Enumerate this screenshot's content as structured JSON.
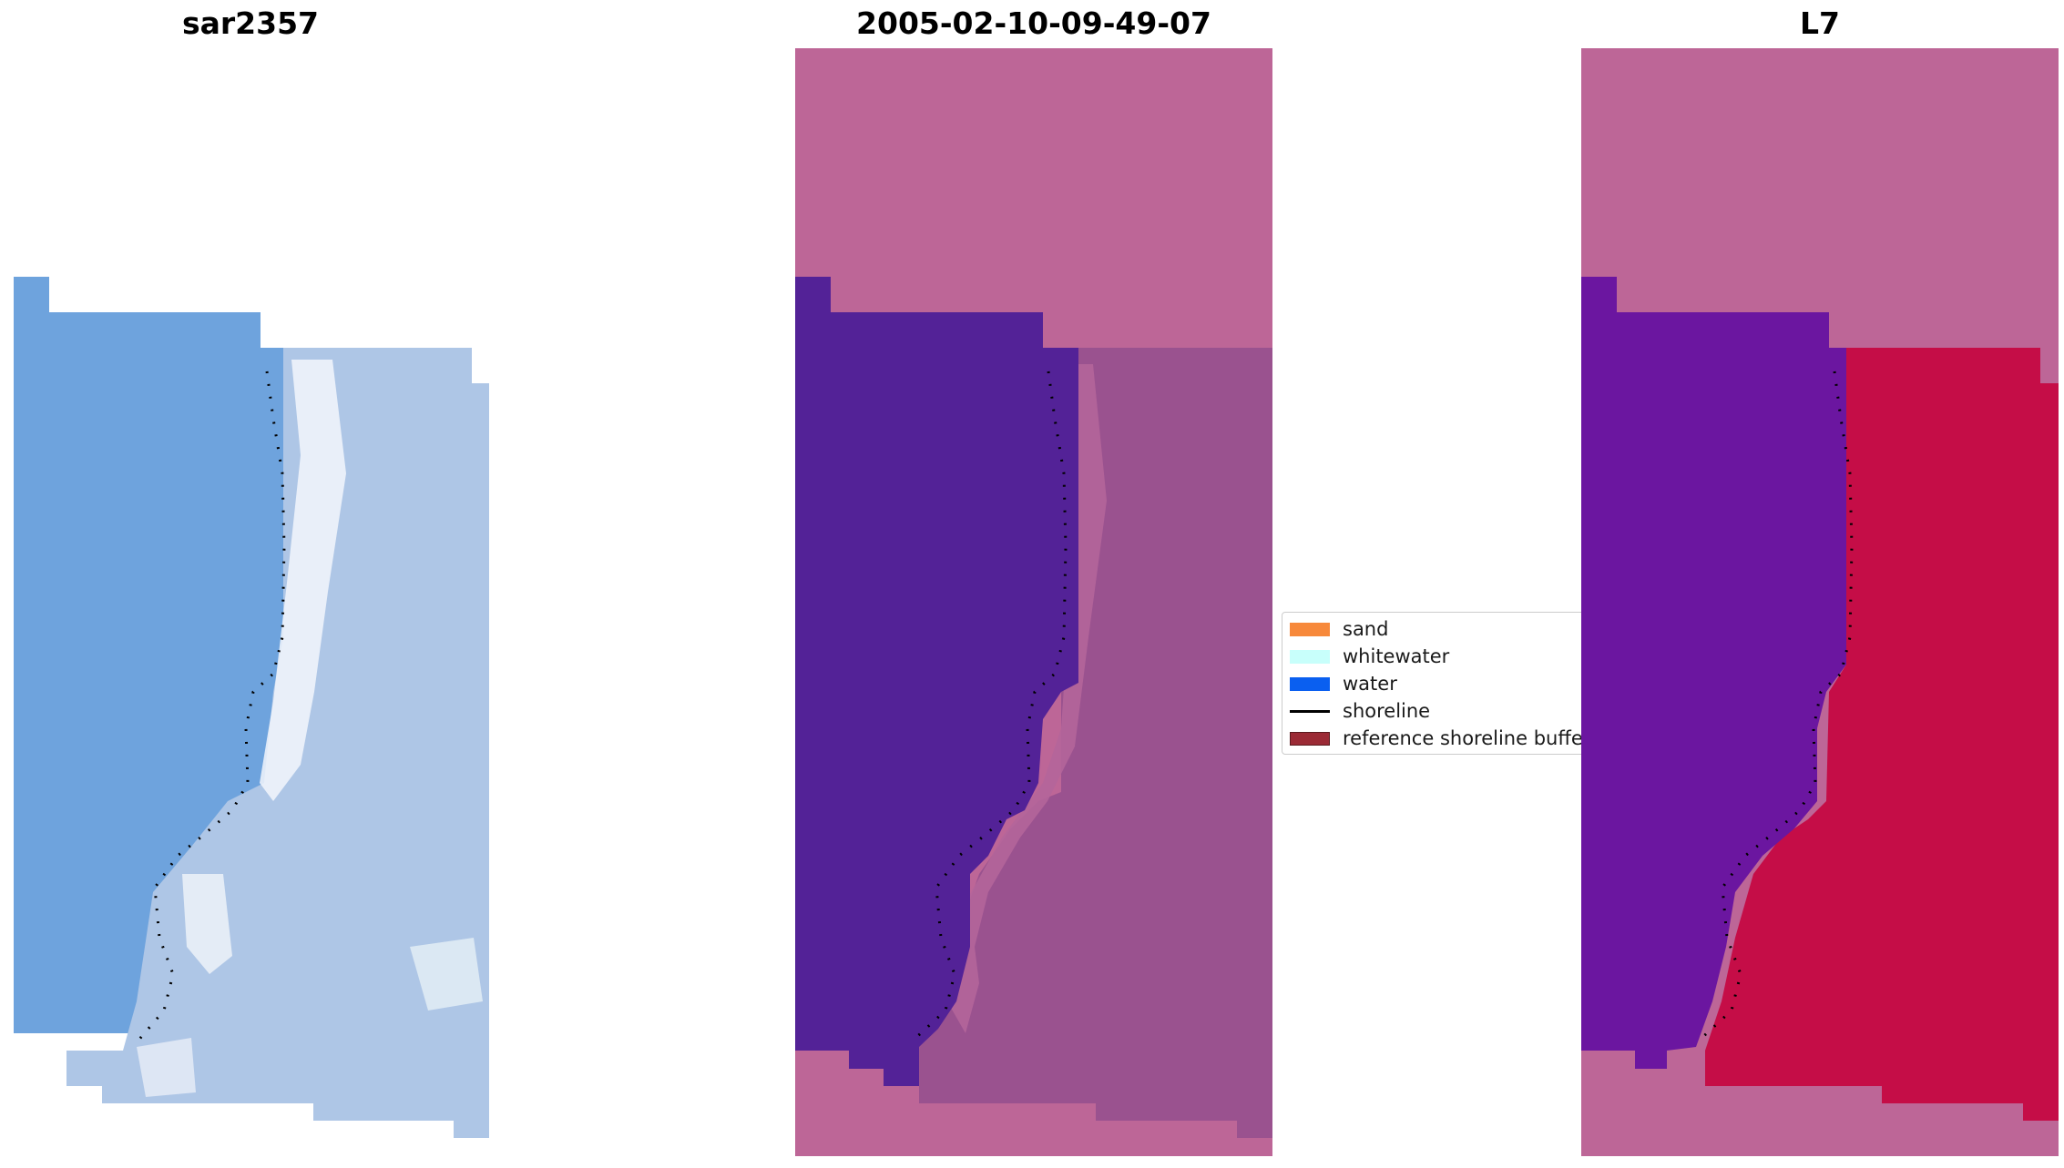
{
  "panels": [
    {
      "title": "sar2357"
    },
    {
      "title": "2005-02-10-09-49-07"
    },
    {
      "title": "L7"
    }
  ],
  "legend": {
    "items": [
      {
        "label": "sand",
        "kind": "patch",
        "color": "#f7893b"
      },
      {
        "label": "whitewater",
        "kind": "patch",
        "color": "#c8fffb"
      },
      {
        "label": "water",
        "kind": "patch",
        "color": "#0a5ff0"
      },
      {
        "label": "shoreline",
        "kind": "line",
        "color": "#000000"
      },
      {
        "label": "reference shoreline buffer",
        "kind": "patch",
        "color": "#9b2a35"
      }
    ]
  },
  "colors": {
    "rgb_water": "#6b9fdc",
    "rgb_surf": "#dfe8f4",
    "class_water": "#532297",
    "class_land": "#ba6596",
    "class_land_dark": "#8e4d8e",
    "index_water": "#6a149f",
    "index_land": "#c40c46",
    "background_mask": "#bd6697"
  }
}
